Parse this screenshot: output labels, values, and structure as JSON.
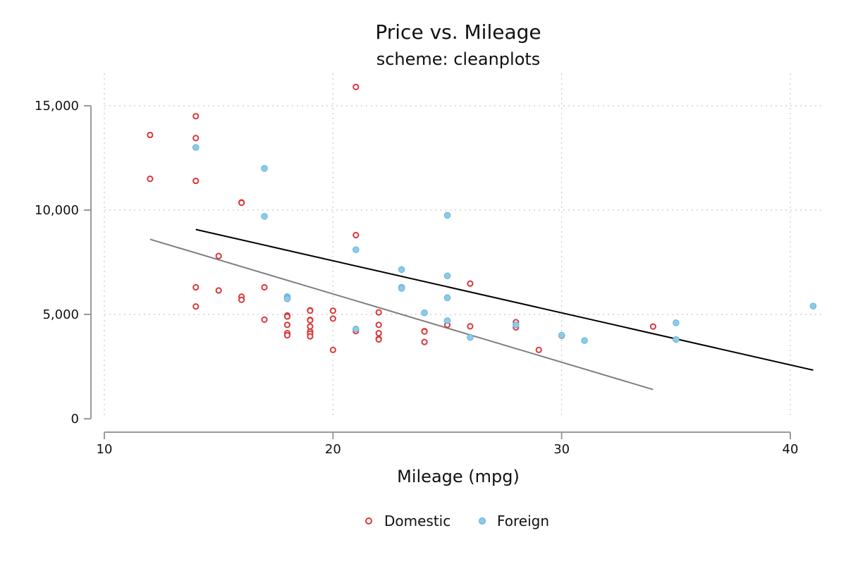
{
  "chart_data": {
    "type": "scatter",
    "title": "Price vs. Mileage",
    "subtitle": "scheme: cleanplots",
    "xlabel": "Mileage (mpg)",
    "ylabel": "",
    "xlim": [
      10,
      41.5
    ],
    "ylim": [
      0,
      16000
    ],
    "xticks": [
      10,
      20,
      30,
      40
    ],
    "xtick_labels": [
      "10",
      "20",
      "30",
      "40"
    ],
    "yticks": [
      0,
      5000,
      10000,
      15000
    ],
    "ytick_labels": [
      "0",
      "5,000",
      "10,000",
      "15,000"
    ],
    "grid": true,
    "legend_position": "bottom",
    "colors": {
      "domestic": "#d9393b",
      "foreign": "#8ecbe8",
      "fit_domestic": "#7f7f7f",
      "fit_foreign": "#000000"
    },
    "series": [
      {
        "name": "Domestic",
        "marker": "hollow-circle",
        "points": [
          [
            12,
            13600
          ],
          [
            12,
            11500
          ],
          [
            14,
            14500
          ],
          [
            14,
            13450
          ],
          [
            14,
            11400
          ],
          [
            14,
            6300
          ],
          [
            14,
            5380
          ],
          [
            15,
            7800
          ],
          [
            15,
            6150
          ],
          [
            16,
            10370
          ],
          [
            16,
            10350
          ],
          [
            16,
            5850
          ],
          [
            16,
            5700
          ],
          [
            17,
            6300
          ],
          [
            17,
            4750
          ],
          [
            18,
            4950
          ],
          [
            18,
            4900
          ],
          [
            18,
            4500
          ],
          [
            18,
            4100
          ],
          [
            18,
            4000
          ],
          [
            19,
            5200
          ],
          [
            19,
            5180
          ],
          [
            19,
            4740
          ],
          [
            19,
            4720
          ],
          [
            19,
            4420
          ],
          [
            19,
            4180
          ],
          [
            19,
            4080
          ],
          [
            19,
            3950
          ],
          [
            20,
            5180
          ],
          [
            20,
            4800
          ],
          [
            20,
            3300
          ],
          [
            21,
            15900
          ],
          [
            21,
            8800
          ],
          [
            21,
            4200
          ],
          [
            22,
            5100
          ],
          [
            22,
            4500
          ],
          [
            22,
            4100
          ],
          [
            22,
            3830
          ],
          [
            22,
            3800
          ],
          [
            24,
            4200
          ],
          [
            24,
            4180
          ],
          [
            24,
            3680
          ],
          [
            25,
            4500
          ],
          [
            26,
            6480
          ],
          [
            26,
            4430
          ],
          [
            28,
            4630
          ],
          [
            28,
            4380
          ],
          [
            29,
            3300
          ],
          [
            30,
            3980
          ],
          [
            34,
            4420
          ]
        ]
      },
      {
        "name": "Foreign",
        "marker": "filled-circle",
        "points": [
          [
            14,
            13000
          ],
          [
            17,
            12000
          ],
          [
            17,
            9700
          ],
          [
            18,
            5850
          ],
          [
            18,
            5800
          ],
          [
            18,
            5750
          ],
          [
            21,
            8100
          ],
          [
            21,
            4300
          ],
          [
            23,
            7150
          ],
          [
            23,
            6300
          ],
          [
            23,
            6250
          ],
          [
            24,
            5080
          ],
          [
            25,
            9750
          ],
          [
            25,
            6850
          ],
          [
            25,
            5800
          ],
          [
            25,
            4700
          ],
          [
            26,
            3900
          ],
          [
            28,
            4500
          ],
          [
            30,
            4000
          ],
          [
            31,
            3750
          ],
          [
            35,
            4600
          ],
          [
            35,
            3800
          ],
          [
            41,
            5400
          ]
        ]
      }
    ],
    "fit_lines": [
      {
        "group": "Domestic",
        "x": [
          12,
          34
        ],
        "y": [
          8600,
          1400
        ]
      },
      {
        "group": "Foreign",
        "x": [
          14,
          41
        ],
        "y": [
          9070,
          2330
        ]
      }
    ]
  }
}
